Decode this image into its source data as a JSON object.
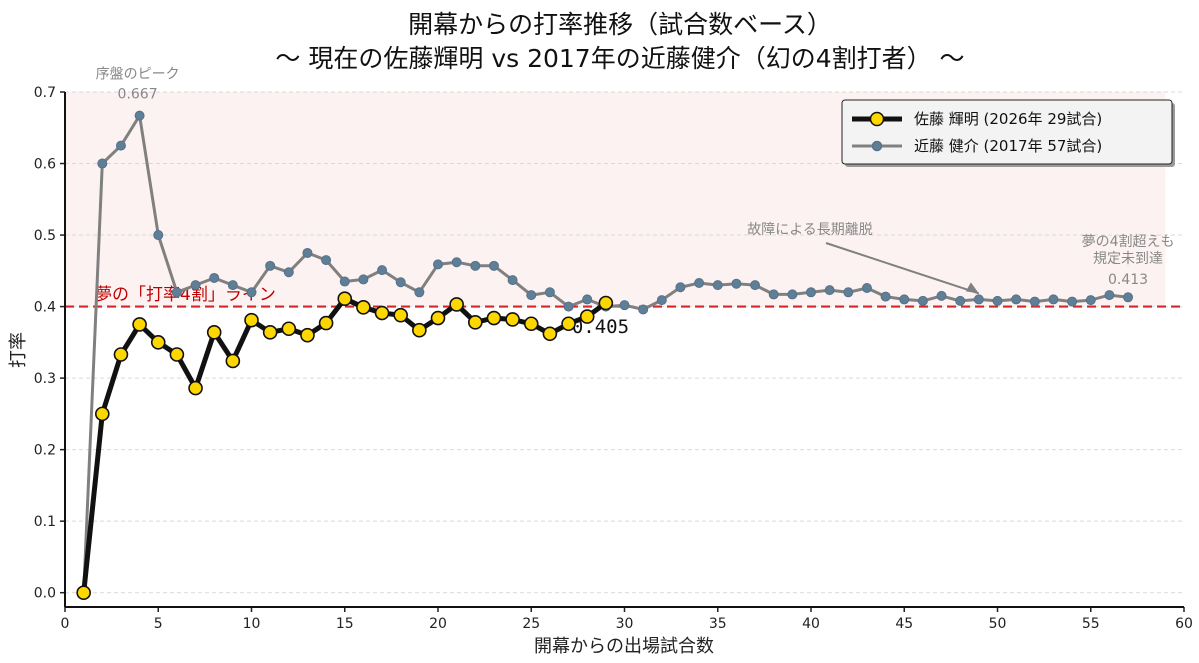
{
  "chart_data": {
    "type": "line",
    "title": "開幕からの打率推移（試合数ベース）",
    "subtitle": "〜 現在の佐藤輝明 vs 2017年の近藤健介（幻の4割打者） 〜",
    "xlabel": "開幕からの出場試合数",
    "ylabel": "打率",
    "xlim": [
      0,
      60
    ],
    "ylim": [
      -0.02,
      0.7
    ],
    "x_ticks": [
      0,
      5,
      10,
      15,
      20,
      25,
      30,
      35,
      40,
      45,
      50,
      55,
      60
    ],
    "y_ticks": [
      0.0,
      0.1,
      0.2,
      0.3,
      0.4,
      0.5,
      0.6,
      0.7
    ],
    "y_tick_labels": [
      "0.0",
      "0.1",
      "0.2",
      "0.3",
      "0.4",
      "0.5",
      "0.6",
      "0.7"
    ],
    "grid": "horizontal dashed",
    "legend_position": "top-right",
    "reference_line": {
      "y": 0.4,
      "label": "夢の「打率4割」ライン",
      "color": "#d62728"
    },
    "shaded_region": {
      "y_from": 0.4,
      "y_to": 0.7,
      "x_to": 59,
      "color": "#fdf2f2"
    },
    "series": [
      {
        "name": "佐藤 輝明 (2026年 29試合)",
        "line_color": "#111111",
        "marker_color": "#ffd700",
        "x": [
          1,
          2,
          3,
          4,
          5,
          6,
          7,
          8,
          9,
          10,
          11,
          12,
          13,
          14,
          15,
          16,
          17,
          18,
          19,
          20,
          21,
          22,
          23,
          24,
          25,
          26,
          27,
          28,
          29
        ],
        "values": [
          0.0,
          0.25,
          0.333,
          0.375,
          0.35,
          0.333,
          0.286,
          0.364,
          0.324,
          0.381,
          0.364,
          0.369,
          0.36,
          0.377,
          0.411,
          0.399,
          0.391,
          0.388,
          0.367,
          0.384,
          0.403,
          0.378,
          0.384,
          0.382,
          0.376,
          0.362,
          0.376,
          0.386,
          0.405
        ]
      },
      {
        "name": "近藤 健介 (2017年 57試合)",
        "line_color": "#808080",
        "marker_color": "#5f7f96",
        "x": [
          1,
          2,
          3,
          4,
          5,
          6,
          7,
          8,
          9,
          10,
          11,
          12,
          13,
          14,
          15,
          16,
          17,
          18,
          19,
          20,
          21,
          22,
          23,
          24,
          25,
          26,
          27,
          28,
          29,
          30,
          31,
          32,
          33,
          34,
          35,
          36,
          37,
          38,
          39,
          40,
          41,
          42,
          43,
          44,
          45,
          46,
          47,
          48,
          49,
          50,
          51,
          52,
          53,
          54,
          55,
          56,
          57
        ],
        "values": [
          0.0,
          0.6,
          0.625,
          0.667,
          0.5,
          0.42,
          0.43,
          0.44,
          0.43,
          0.42,
          0.457,
          0.448,
          0.475,
          0.465,
          0.435,
          0.438,
          0.451,
          0.434,
          0.42,
          0.459,
          0.462,
          0.457,
          0.457,
          0.437,
          0.416,
          0.42,
          0.4,
          0.41,
          0.4,
          0.402,
          0.396,
          0.409,
          0.427,
          0.433,
          0.43,
          0.432,
          0.43,
          0.417,
          0.417,
          0.42,
          0.423,
          0.42,
          0.426,
          0.414,
          0.41,
          0.408,
          0.415,
          0.408,
          0.41,
          0.408,
          0.41,
          0.407,
          0.41,
          0.407,
          0.409,
          0.416,
          0.413
        ]
      }
    ],
    "annotations": [
      {
        "text": "序盤のピーク",
        "x": 4,
        "y": 0.667,
        "color": "gray"
      },
      {
        "text": "0.667",
        "x": 4,
        "y": 0.667,
        "color": "gray"
      },
      {
        "text": "故障による長期離脱",
        "x": 49,
        "y": 0.41,
        "color": "gray",
        "arrow": true
      },
      {
        "text": "夢の4割超えも",
        "x": 57,
        "y": 0.413,
        "color": "gray"
      },
      {
        "text": "規定未到達",
        "x": 57,
        "y": 0.413,
        "color": "gray"
      },
      {
        "text": "0.413",
        "x": 57,
        "y": 0.413,
        "color": "gray"
      },
      {
        "text": "0.405",
        "x": 29,
        "y": 0.405,
        "color": "black"
      }
    ]
  }
}
